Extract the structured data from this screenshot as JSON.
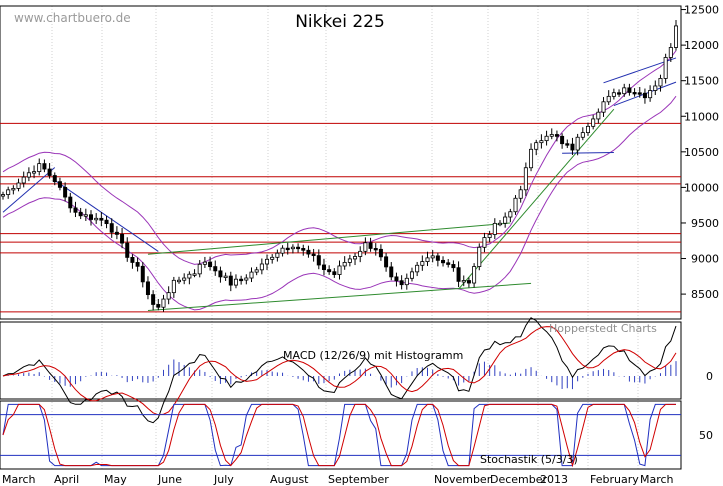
{
  "watermark": "www.chartbuero.de",
  "credit": "Hopperstedt Charts",
  "chart_data": [
    {
      "type": "candlestick",
      "title": "Nikkei 225",
      "ylim": [
        8150,
        12550
      ],
      "y_ticks": [
        8500,
        9000,
        9500,
        10000,
        10500,
        11000,
        11500,
        12000,
        12500
      ],
      "x_months": [
        "March",
        "April",
        "May",
        "June",
        "July",
        "August",
        "September",
        "November",
        "December",
        "2013",
        "February",
        "March"
      ],
      "close_path": [
        [
          0,
          9900
        ],
        [
          2,
          10020
        ],
        [
          4,
          10150
        ],
        [
          6,
          10260
        ],
        [
          7,
          10300
        ],
        [
          8,
          10250
        ],
        [
          10,
          10100
        ],
        [
          12,
          9850
        ],
        [
          14,
          9650
        ],
        [
          16,
          9600
        ],
        [
          18,
          9560
        ],
        [
          20,
          9520
        ],
        [
          22,
          9300
        ],
        [
          24,
          9050
        ],
        [
          26,
          8850
        ],
        [
          27,
          8700
        ],
        [
          28,
          8500
        ],
        [
          29,
          8350
        ],
        [
          30,
          8300
        ],
        [
          31,
          8450
        ],
        [
          32,
          8550
        ],
        [
          33,
          8650
        ],
        [
          35,
          8750
        ],
        [
          37,
          8800
        ],
        [
          38,
          8950
        ],
        [
          40,
          8900
        ],
        [
          42,
          8780
        ],
        [
          44,
          8650
        ],
        [
          46,
          8700
        ],
        [
          48,
          8800
        ],
        [
          50,
          8900
        ],
        [
          52,
          9050
        ],
        [
          54,
          9150
        ],
        [
          56,
          9200
        ],
        [
          58,
          9100
        ],
        [
          60,
          9000
        ],
        [
          62,
          8850
        ],
        [
          64,
          8780
        ],
        [
          66,
          8950
        ],
        [
          68,
          9050
        ],
        [
          70,
          9200
        ],
        [
          72,
          9150
        ],
        [
          73,
          9000
        ],
        [
          74,
          8850
        ],
        [
          75,
          8700
        ],
        [
          77,
          8600
        ],
        [
          79,
          8800
        ],
        [
          81,
          9000
        ],
        [
          83,
          9050
        ],
        [
          85,
          8950
        ],
        [
          87,
          8850
        ],
        [
          88,
          8700
        ],
        [
          89,
          8650
        ],
        [
          90,
          8700
        ],
        [
          91,
          8900
        ],
        [
          92,
          9150
        ],
        [
          93,
          9300
        ],
        [
          95,
          9450
        ],
        [
          97,
          9550
        ],
        [
          98,
          9650
        ],
        [
          99,
          9850
        ],
        [
          100,
          10000
        ],
        [
          101,
          10250
        ],
        [
          102,
          10500
        ],
        [
          103,
          10650
        ],
        [
          105,
          10750
        ],
        [
          107,
          10700
        ],
        [
          108,
          10600
        ],
        [
          110,
          10550
        ],
        [
          112,
          10800
        ],
        [
          114,
          11000
        ],
        [
          116,
          11200
        ],
        [
          118,
          11300
        ],
        [
          120,
          11400
        ],
        [
          122,
          11350
        ],
        [
          124,
          11300
        ],
        [
          126,
          11450
        ],
        [
          127,
          11550
        ],
        [
          128,
          11800
        ],
        [
          129,
          12000
        ],
        [
          130,
          12300
        ]
      ],
      "horizontal_levels": [
        8250,
        9080,
        9230,
        9350,
        10050,
        10150,
        10900
      ],
      "trend_lines": [
        {
          "from": [
            28,
            8270
          ],
          "to": [
            102,
            8650
          ]
        },
        {
          "from": [
            28,
            9060
          ],
          "to": [
            98,
            9500
          ]
        },
        {
          "from": [
            88,
            8570
          ],
          "to": [
            118,
            11100
          ]
        },
        {
          "from": [
            108,
            10480
          ],
          "to": [
            118,
            10490
          ]
        },
        {
          "from": [
            0,
            9650
          ],
          "to": [
            10,
            10280
          ]
        },
        {
          "from": [
            10,
            10100
          ],
          "to": [
            30,
            9100
          ]
        },
        {
          "from": [
            116,
            11470
          ],
          "to": [
            130,
            11820
          ]
        },
        {
          "from": [
            118,
            11150
          ],
          "to": [
            130,
            11480
          ]
        }
      ],
      "bollinger_width": 320
    },
    {
      "type": "line",
      "title": "MACD (12/26/9) mit Histogramm",
      "ylim": [
        -1,
        1
      ],
      "y_ticks": [
        0
      ],
      "series": [
        {
          "values": []
        },
        {
          "values": []
        }
      ]
    },
    {
      "type": "line",
      "title": "Stochastik (5/3/3)",
      "ylim": [
        0,
        100
      ],
      "y_ticks": [
        50
      ],
      "reference_levels": [
        20,
        80
      ],
      "series": [
        {
          "values": []
        },
        {
          "values": []
        }
      ]
    }
  ]
}
